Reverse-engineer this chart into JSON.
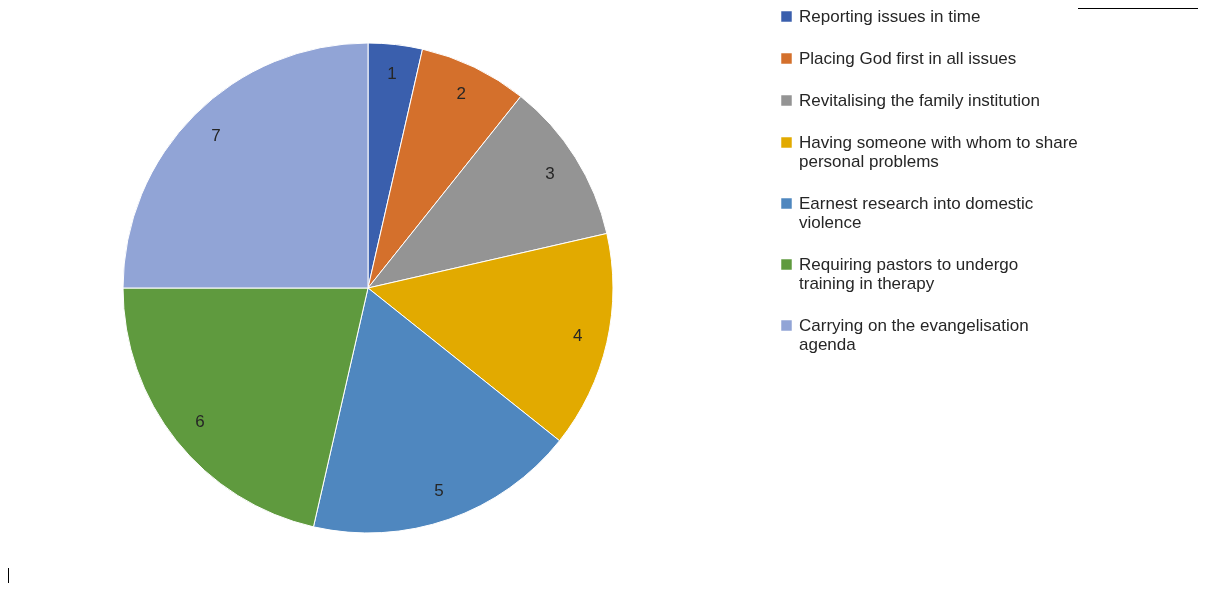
{
  "chart_data": {
    "type": "pie",
    "categories": [
      "Reporting issues in time",
      "Placing God first in all issues",
      "Revitalising the family institution",
      "Having someone with whom to share personal problems",
      "Earnest research into domestic violence",
      "Requiring pastors to undergo training in therapy",
      "Carrying on the evangelisation agenda"
    ],
    "values": [
      1,
      2,
      3,
      4,
      5,
      6,
      7
    ],
    "colors": [
      "#3a5fad",
      "#d4702c",
      "#949494",
      "#e2aa00",
      "#4f87bf",
      "#5f9a3e",
      "#91a4d6"
    ],
    "data_labels": true,
    "legend": "right"
  }
}
